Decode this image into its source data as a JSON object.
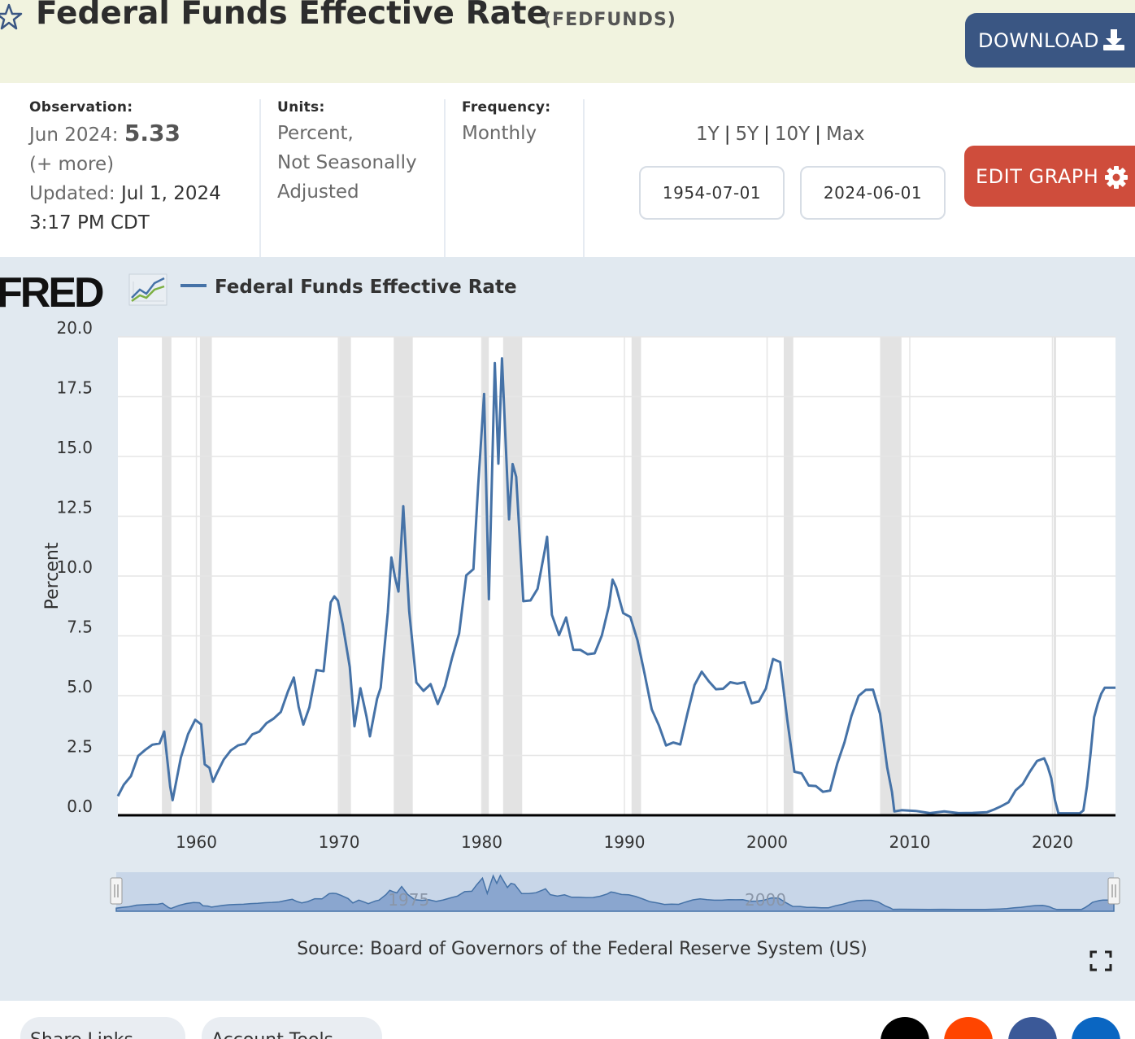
{
  "header": {
    "title": "Federal Funds Effective Rate",
    "series_id": "(FEDFUNDS)",
    "download_label": "DOWNLOAD"
  },
  "meta": {
    "observation_heading": "Observation:",
    "observation_date": "Jun 2024:",
    "observation_value": "5.33",
    "more_label": "(+ more)",
    "updated_label": "Updated:",
    "updated_date": "Jul 1, 2024",
    "updated_time": "3:17 PM CDT",
    "units_heading": "Units:",
    "units_line1": "Percent,",
    "units_line2": "Not Seasonally",
    "units_line3": "Adjusted",
    "frequency_heading": "Frequency:",
    "frequency_value": "Monthly"
  },
  "controls": {
    "ranges": [
      "1Y",
      "5Y",
      "10Y",
      "Max"
    ],
    "start_date": "1954-07-01",
    "end_date": "2024-06-01",
    "edit_label": "EDIT GRAPH"
  },
  "chart_data": {
    "type": "line",
    "logo": "FRED",
    "ylabel": "Percent",
    "ylim": [
      0,
      20
    ],
    "y_ticks": [
      "0.0",
      "2.5",
      "5.0",
      "7.5",
      "10.0",
      "12.5",
      "15.0",
      "17.5",
      "20.0"
    ],
    "x_ticks": [
      "1960",
      "1970",
      "1980",
      "1990",
      "2000",
      "2010",
      "2020"
    ],
    "xlim": [
      "1954-07",
      "2024-06"
    ],
    "navigator_labels": [
      "1975",
      "2000"
    ],
    "recessions": [
      [
        "1957-08",
        "1958-04"
      ],
      [
        "1960-04",
        "1961-02"
      ],
      [
        "1969-12",
        "1970-11"
      ],
      [
        "1973-11",
        "1975-03"
      ],
      [
        "1980-01",
        "1980-07"
      ],
      [
        "1981-07",
        "1982-11"
      ],
      [
        "1990-07",
        "1991-03"
      ],
      [
        "2001-03",
        "2001-11"
      ],
      [
        "2007-12",
        "2009-06"
      ],
      [
        "2020-02",
        "2020-04"
      ]
    ],
    "series": [
      {
        "name": "Federal Funds Effective Rate",
        "color": "#4572a7",
        "points": [
          [
            "1954-07",
            0.8
          ],
          [
            "1954-12",
            1.28
          ],
          [
            "1955-06",
            1.64
          ],
          [
            "1955-12",
            2.48
          ],
          [
            "1956-06",
            2.73
          ],
          [
            "1956-12",
            2.95
          ],
          [
            "1957-06",
            3.0
          ],
          [
            "1957-10",
            3.5
          ],
          [
            "1958-03",
            1.2
          ],
          [
            "1958-05",
            0.63
          ],
          [
            "1958-12",
            2.42
          ],
          [
            "1959-06",
            3.39
          ],
          [
            "1959-12",
            3.99
          ],
          [
            "1960-05",
            3.8
          ],
          [
            "1960-08",
            2.13
          ],
          [
            "1960-12",
            1.98
          ],
          [
            "1961-03",
            1.4
          ],
          [
            "1961-06",
            1.73
          ],
          [
            "1961-12",
            2.33
          ],
          [
            "1962-06",
            2.71
          ],
          [
            "1962-12",
            2.92
          ],
          [
            "1963-06",
            2.99
          ],
          [
            "1963-12",
            3.38
          ],
          [
            "1964-06",
            3.5
          ],
          [
            "1964-12",
            3.85
          ],
          [
            "1965-06",
            4.04
          ],
          [
            "1965-12",
            4.32
          ],
          [
            "1966-06",
            5.17
          ],
          [
            "1966-11",
            5.76
          ],
          [
            "1967-03",
            4.53
          ],
          [
            "1967-07",
            3.79
          ],
          [
            "1967-12",
            4.51
          ],
          [
            "1968-06",
            6.07
          ],
          [
            "1968-12",
            6.02
          ],
          [
            "1969-06",
            8.9
          ],
          [
            "1969-09",
            9.15
          ],
          [
            "1969-12",
            8.97
          ],
          [
            "1970-04",
            8.0
          ],
          [
            "1970-10",
            6.2
          ],
          [
            "1971-02",
            3.72
          ],
          [
            "1971-07",
            5.31
          ],
          [
            "1971-12",
            4.14
          ],
          [
            "1972-03",
            3.3
          ],
          [
            "1972-09",
            4.87
          ],
          [
            "1972-12",
            5.33
          ],
          [
            "1973-06",
            8.49
          ],
          [
            "1973-09",
            10.78
          ],
          [
            "1973-12",
            9.95
          ],
          [
            "1974-03",
            9.35
          ],
          [
            "1974-07",
            12.92
          ],
          [
            "1974-12",
            8.53
          ],
          [
            "1975-06",
            5.55
          ],
          [
            "1975-12",
            5.2
          ],
          [
            "1976-06",
            5.48
          ],
          [
            "1976-12",
            4.65
          ],
          [
            "1977-06",
            5.39
          ],
          [
            "1977-12",
            6.56
          ],
          [
            "1978-06",
            7.6
          ],
          [
            "1978-12",
            10.03
          ],
          [
            "1979-06",
            10.29
          ],
          [
            "1979-10",
            13.77
          ],
          [
            "1980-03",
            17.61
          ],
          [
            "1980-07",
            9.03
          ],
          [
            "1980-12",
            18.9
          ],
          [
            "1981-03",
            14.7
          ],
          [
            "1981-06",
            19.1
          ],
          [
            "1981-12",
            12.37
          ],
          [
            "1982-03",
            14.68
          ],
          [
            "1982-06",
            14.15
          ],
          [
            "1982-12",
            8.95
          ],
          [
            "1983-06",
            8.98
          ],
          [
            "1983-12",
            9.47
          ],
          [
            "1984-06",
            11.06
          ],
          [
            "1984-08",
            11.64
          ],
          [
            "1984-12",
            8.38
          ],
          [
            "1985-06",
            7.53
          ],
          [
            "1985-12",
            8.27
          ],
          [
            "1986-06",
            6.92
          ],
          [
            "1986-12",
            6.91
          ],
          [
            "1987-06",
            6.73
          ],
          [
            "1987-12",
            6.77
          ],
          [
            "1988-06",
            7.51
          ],
          [
            "1988-12",
            8.76
          ],
          [
            "1989-03",
            9.85
          ],
          [
            "1989-06",
            9.53
          ],
          [
            "1989-12",
            8.45
          ],
          [
            "1990-06",
            8.29
          ],
          [
            "1990-12",
            7.31
          ],
          [
            "1991-06",
            5.9
          ],
          [
            "1991-12",
            4.43
          ],
          [
            "1992-06",
            3.76
          ],
          [
            "1992-12",
            2.92
          ],
          [
            "1993-06",
            3.04
          ],
          [
            "1993-12",
            2.96
          ],
          [
            "1994-06",
            4.25
          ],
          [
            "1994-12",
            5.45
          ],
          [
            "1995-06",
            6.0
          ],
          [
            "1995-12",
            5.6
          ],
          [
            "1996-06",
            5.27
          ],
          [
            "1996-12",
            5.29
          ],
          [
            "1997-06",
            5.56
          ],
          [
            "1997-12",
            5.5
          ],
          [
            "1998-06",
            5.56
          ],
          [
            "1998-12",
            4.68
          ],
          [
            "1999-06",
            4.76
          ],
          [
            "1999-12",
            5.3
          ],
          [
            "2000-06",
            6.53
          ],
          [
            "2000-12",
            6.4
          ],
          [
            "2001-06",
            3.97
          ],
          [
            "2001-12",
            1.82
          ],
          [
            "2002-06",
            1.75
          ],
          [
            "2002-12",
            1.24
          ],
          [
            "2003-06",
            1.22
          ],
          [
            "2003-12",
            0.98
          ],
          [
            "2004-06",
            1.03
          ],
          [
            "2004-12",
            2.16
          ],
          [
            "2005-06",
            3.04
          ],
          [
            "2005-12",
            4.16
          ],
          [
            "2006-06",
            4.99
          ],
          [
            "2006-12",
            5.24
          ],
          [
            "2007-06",
            5.25
          ],
          [
            "2007-12",
            4.24
          ],
          [
            "2008-06",
            2.0
          ],
          [
            "2008-10",
            0.97
          ],
          [
            "2008-12",
            0.16
          ],
          [
            "2009-06",
            0.21
          ],
          [
            "2010-06",
            0.18
          ],
          [
            "2011-06",
            0.09
          ],
          [
            "2012-06",
            0.16
          ],
          [
            "2013-06",
            0.09
          ],
          [
            "2014-06",
            0.1
          ],
          [
            "2015-06",
            0.13
          ],
          [
            "2015-12",
            0.24
          ],
          [
            "2016-06",
            0.38
          ],
          [
            "2016-12",
            0.54
          ],
          [
            "2017-06",
            1.04
          ],
          [
            "2017-12",
            1.3
          ],
          [
            "2018-06",
            1.82
          ],
          [
            "2018-12",
            2.27
          ],
          [
            "2019-06",
            2.38
          ],
          [
            "2019-09",
            2.04
          ],
          [
            "2019-12",
            1.55
          ],
          [
            "2020-03",
            0.65
          ],
          [
            "2020-06",
            0.08
          ],
          [
            "2021-06",
            0.08
          ],
          [
            "2021-12",
            0.08
          ],
          [
            "2022-03",
            0.2
          ],
          [
            "2022-06",
            1.21
          ],
          [
            "2022-09",
            2.56
          ],
          [
            "2022-12",
            4.1
          ],
          [
            "2023-03",
            4.65
          ],
          [
            "2023-06",
            5.08
          ],
          [
            "2023-09",
            5.33
          ],
          [
            "2024-06",
            5.33
          ]
        ]
      }
    ],
    "source": "Source: Board of Governors of the Federal Reserve System (US)"
  },
  "footer": {
    "share_links": "Share Links",
    "account_tools": "Account Tools"
  },
  "colors": {
    "header_bg": "#f1f3df",
    "download_bg": "#3a5683",
    "edit_bg": "#cf4d3c",
    "chart_bg": "#e1e9f0",
    "line": "#4572a7",
    "recession": "#e3e3e3"
  }
}
